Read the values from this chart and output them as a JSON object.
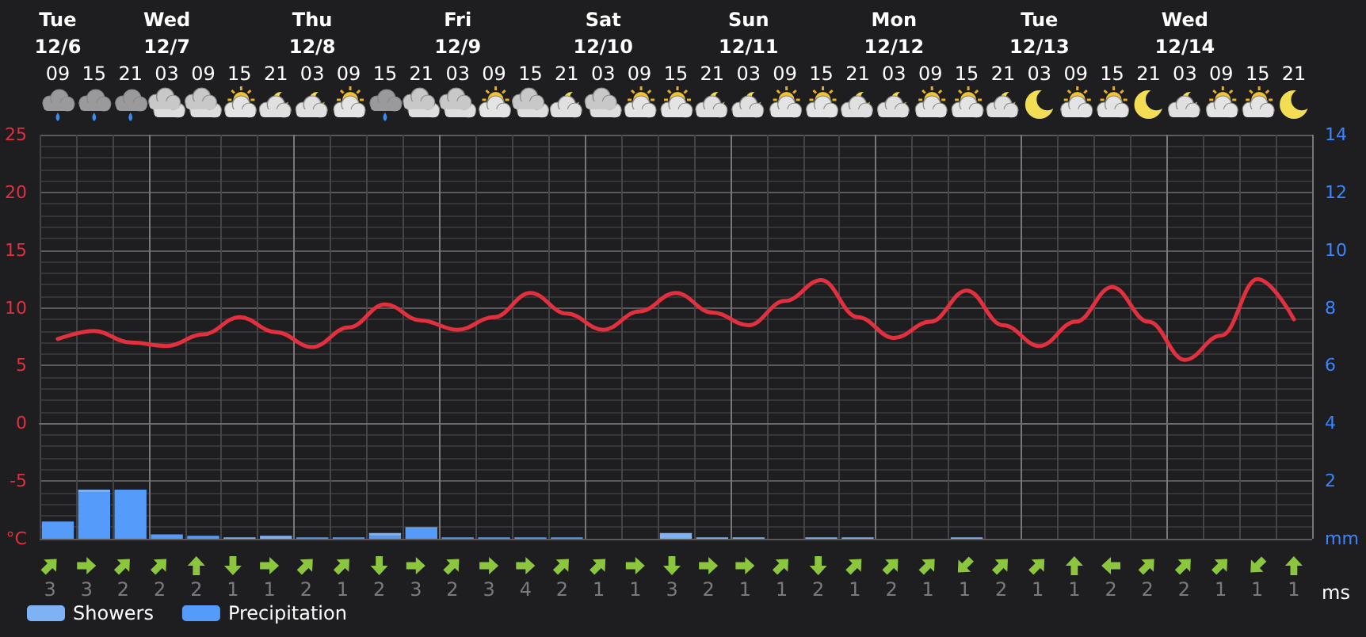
{
  "chart_data": [
    {
      "type": "line",
      "categories": [
        "Tue\n12/6\n09",
        "15",
        "21",
        "Wed\n12/7\n03",
        "09",
        "15",
        "21",
        "Thu\n12/8\n03",
        "09",
        "15",
        "21",
        "Fri\n12/9\n03",
        "09",
        "15",
        "21",
        "Sat\n12/10\n03",
        "09",
        "15",
        "21",
        "Sun\n12/11\n03",
        "09",
        "15",
        "21",
        "Mon\n12/12\n03",
        "09",
        "15",
        "21",
        "Tue\n12/13\n03",
        "09",
        "15",
        "21",
        "Wed\n12/14\n03",
        "09",
        "15",
        "21"
      ],
      "series": [
        {
          "color": "#e2303f",
          "values": [
            7.3,
            8.0,
            7.0,
            6.7,
            7.7,
            9.2,
            7.9,
            6.6,
            8.3,
            10.3,
            8.9,
            8.1,
            9.2,
            11.3,
            9.5,
            8.1,
            9.7,
            11.3,
            9.6,
            8.5,
            10.6,
            12.4,
            9.2,
            7.4,
            8.8,
            11.5,
            8.5,
            6.7,
            8.8,
            11.8,
            8.8,
            5.5,
            7.6,
            12.5,
            9.0
          ]
        },
        {
          "name": "Precipitation",
          "type": "bar",
          "axis": "y2",
          "color": "#559cfa",
          "values": [
            0.6,
            1.6,
            1.7,
            0.15,
            0.1,
            0,
            0,
            0.05,
            0.05,
            0.1,
            0.35,
            0.05,
            0.05,
            0.05,
            0.05,
            0,
            0,
            0,
            0,
            0,
            0,
            0,
            0,
            0,
            0,
            0,
            0,
            0,
            0,
            0,
            0,
            0,
            0,
            0,
            0
          ]
        },
        {
          "name": "Showers",
          "type": "bar",
          "axis": "y2",
          "color": "#7fb2f5",
          "values": [
            0,
            0.1,
            0,
            0,
            0,
            0.05,
            0.1,
            0,
            0,
            0.1,
            0.05,
            0,
            0,
            0,
            0,
            0,
            0,
            0.2,
            0.05,
            0.05,
            0,
            0.05,
            0.05,
            0,
            0,
            0.05,
            0,
            0,
            0,
            0,
            0,
            0,
            0,
            0,
            0
          ]
        }
      ],
      "stacked": true,
      "marker": "none",
      "grid": true,
      "legend": "bottom left",
      "ylim": [
        -10,
        25
      ],
      "yticks": [
        {
          "value": -10,
          "label": "°C"
        },
        -5,
        0,
        5,
        10,
        15,
        20,
        25
      ],
      "y2lim": [
        0,
        14
      ],
      "y2ticks": [
        {
          "value": 0,
          "label": "mm"
        },
        2,
        4,
        6,
        8,
        10,
        12,
        14
      ]
    },
    {
      "type": "other",
      "xlabel": "ms",
      "data_labels": true,
      "values": [
        3,
        3,
        2,
        2,
        2,
        1,
        1,
        2,
        1,
        2,
        3,
        2,
        3,
        4,
        2,
        1,
        1,
        3,
        2,
        1,
        1,
        2,
        1,
        2,
        1,
        1,
        2,
        1,
        1,
        2,
        2,
        2,
        1,
        1,
        1
      ]
    }
  ]
}
